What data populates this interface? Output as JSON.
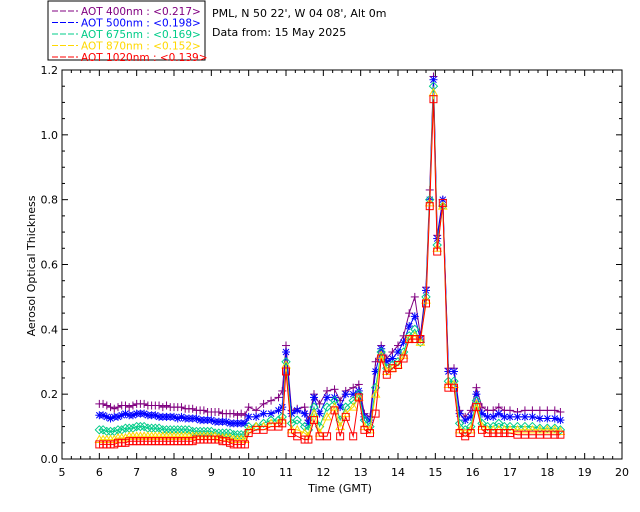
{
  "chart_data": {
    "type": "line",
    "site_info": "PML, N 50 22', W 04 08', Alt 0m",
    "date_info": "Data from: 15 May 2025",
    "xlabel": "Time (GMT)",
    "ylabel": "Aerosol Optical Thickness",
    "xlim": [
      5,
      20
    ],
    "ylim": [
      0.0,
      1.2
    ],
    "x_ticks": [
      "5",
      "6",
      "7",
      "8",
      "9",
      "10",
      "11",
      "12",
      "13",
      "14",
      "15",
      "16",
      "17",
      "18",
      "19",
      "20"
    ],
    "y_ticks": [
      "0.0",
      "0.2",
      "0.4",
      "0.6",
      "0.8",
      "1.0",
      "1.2"
    ],
    "legend_position": "top-left (above plot)",
    "x": [
      6.0,
      6.1,
      6.2,
      6.3,
      6.4,
      6.5,
      6.6,
      6.7,
      6.8,
      6.9,
      7.0,
      7.1,
      7.2,
      7.3,
      7.4,
      7.5,
      7.6,
      7.7,
      7.8,
      7.9,
      8.0,
      8.1,
      8.2,
      8.3,
      8.4,
      8.5,
      8.6,
      8.7,
      8.8,
      8.9,
      9.0,
      9.1,
      9.2,
      9.3,
      9.4,
      9.5,
      9.6,
      9.7,
      9.8,
      9.9,
      10.0,
      10.2,
      10.4,
      10.6,
      10.8,
      10.9,
      11.0,
      11.15,
      11.3,
      11.5,
      11.6,
      11.75,
      11.9,
      12.1,
      12.3,
      12.45,
      12.6,
      12.8,
      12.95,
      13.1,
      13.25,
      13.4,
      13.55,
      13.7,
      13.85,
      14.0,
      14.15,
      14.3,
      14.45,
      14.6,
      14.75,
      14.85,
      14.95,
      15.05,
      15.2,
      15.35,
      15.5,
      15.65,
      15.8,
      15.95,
      16.1,
      16.25,
      16.4,
      16.55,
      16.7,
      16.85,
      17.0,
      17.2,
      17.4,
      17.6,
      17.8,
      18.0,
      18.2,
      18.35
    ],
    "series": [
      {
        "name": "AOT  400nm : <0.217>",
        "color": "#800080",
        "marker": "plus",
        "values": [
          0.17,
          0.17,
          0.165,
          0.16,
          0.155,
          0.16,
          0.165,
          0.165,
          0.16,
          0.165,
          0.17,
          0.17,
          0.17,
          0.165,
          0.165,
          0.165,
          0.165,
          0.16,
          0.165,
          0.16,
          0.16,
          0.16,
          0.16,
          0.155,
          0.155,
          0.155,
          0.15,
          0.15,
          0.15,
          0.145,
          0.145,
          0.145,
          0.145,
          0.14,
          0.14,
          0.14,
          0.14,
          0.135,
          0.14,
          0.135,
          0.16,
          0.15,
          0.17,
          0.18,
          0.19,
          0.21,
          0.35,
          0.15,
          0.155,
          0.16,
          0.12,
          0.2,
          0.17,
          0.21,
          0.215,
          0.18,
          0.21,
          0.22,
          0.23,
          0.14,
          0.13,
          0.3,
          0.35,
          0.31,
          0.33,
          0.35,
          0.38,
          0.45,
          0.5,
          0.38,
          0.53,
          0.83,
          1.18,
          0.69,
          0.8,
          0.28,
          0.28,
          0.15,
          0.13,
          0.15,
          0.22,
          0.16,
          0.15,
          0.15,
          0.16,
          0.15,
          0.15,
          0.145,
          0.15,
          0.15,
          0.15,
          0.15,
          0.15,
          0.145
        ]
      },
      {
        "name": "AOT  500nm : <0.198>",
        "color": "#0000FF",
        "marker": "star",
        "values": [
          0.135,
          0.135,
          0.13,
          0.125,
          0.13,
          0.13,
          0.135,
          0.14,
          0.135,
          0.135,
          0.14,
          0.14,
          0.14,
          0.135,
          0.135,
          0.135,
          0.13,
          0.13,
          0.13,
          0.13,
          0.13,
          0.125,
          0.13,
          0.125,
          0.125,
          0.125,
          0.125,
          0.12,
          0.12,
          0.12,
          0.12,
          0.115,
          0.115,
          0.115,
          0.115,
          0.11,
          0.11,
          0.11,
          0.11,
          0.11,
          0.13,
          0.13,
          0.14,
          0.14,
          0.15,
          0.16,
          0.33,
          0.14,
          0.15,
          0.14,
          0.11,
          0.19,
          0.14,
          0.19,
          0.19,
          0.16,
          0.2,
          0.2,
          0.21,
          0.13,
          0.12,
          0.27,
          0.34,
          0.3,
          0.31,
          0.33,
          0.36,
          0.41,
          0.44,
          0.37,
          0.52,
          0.8,
          1.17,
          0.68,
          0.8,
          0.27,
          0.27,
          0.14,
          0.12,
          0.13,
          0.2,
          0.14,
          0.13,
          0.13,
          0.14,
          0.13,
          0.13,
          0.13,
          0.13,
          0.13,
          0.125,
          0.125,
          0.125,
          0.12
        ]
      },
      {
        "name": "AOT  675nm : <0.169>",
        "color": "#00CC88",
        "marker": "diamond",
        "values": [
          0.09,
          0.09,
          0.085,
          0.085,
          0.085,
          0.09,
          0.09,
          0.095,
          0.095,
          0.095,
          0.1,
          0.1,
          0.1,
          0.095,
          0.095,
          0.095,
          0.095,
          0.09,
          0.09,
          0.09,
          0.09,
          0.09,
          0.09,
          0.09,
          0.09,
          0.085,
          0.085,
          0.085,
          0.085,
          0.085,
          0.085,
          0.08,
          0.08,
          0.08,
          0.08,
          0.08,
          0.075,
          0.075,
          0.075,
          0.075,
          0.1,
          0.1,
          0.11,
          0.12,
          0.12,
          0.13,
          0.3,
          0.11,
          0.12,
          0.1,
          0.09,
          0.16,
          0.1,
          0.16,
          0.18,
          0.12,
          0.16,
          0.18,
          0.2,
          0.12,
          0.1,
          0.22,
          0.33,
          0.28,
          0.29,
          0.3,
          0.33,
          0.38,
          0.4,
          0.36,
          0.5,
          0.8,
          1.15,
          0.66,
          0.78,
          0.24,
          0.24,
          0.11,
          0.09,
          0.1,
          0.18,
          0.11,
          0.1,
          0.1,
          0.11,
          0.1,
          0.1,
          0.1,
          0.1,
          0.1,
          0.095,
          0.095,
          0.095,
          0.09
        ]
      },
      {
        "name": "AOT  870nm : <0.152>",
        "color": "#FFD800",
        "marker": "triangle",
        "values": [
          0.06,
          0.06,
          0.06,
          0.06,
          0.06,
          0.065,
          0.065,
          0.065,
          0.07,
          0.07,
          0.07,
          0.07,
          0.07,
          0.07,
          0.07,
          0.07,
          0.07,
          0.07,
          0.07,
          0.07,
          0.07,
          0.07,
          0.07,
          0.07,
          0.07,
          0.07,
          0.07,
          0.07,
          0.07,
          0.07,
          0.07,
          0.07,
          0.065,
          0.065,
          0.065,
          0.065,
          0.06,
          0.06,
          0.06,
          0.06,
          0.09,
          0.1,
          0.1,
          0.11,
          0.11,
          0.12,
          0.29,
          0.09,
          0.09,
          0.08,
          0.07,
          0.14,
          0.08,
          0.13,
          0.16,
          0.1,
          0.14,
          0.16,
          0.19,
          0.1,
          0.09,
          0.2,
          0.32,
          0.27,
          0.28,
          0.29,
          0.32,
          0.37,
          0.38,
          0.36,
          0.49,
          0.79,
          1.13,
          0.65,
          0.78,
          0.23,
          0.23,
          0.09,
          0.08,
          0.09,
          0.17,
          0.1,
          0.09,
          0.09,
          0.09,
          0.09,
          0.09,
          0.09,
          0.09,
          0.09,
          0.09,
          0.09,
          0.09,
          0.085
        ]
      },
      {
        "name": "AOT 1020nm : <0.139>",
        "color": "#FF0000",
        "marker": "square",
        "values": [
          0.045,
          0.045,
          0.045,
          0.045,
          0.045,
          0.05,
          0.05,
          0.05,
          0.055,
          0.055,
          0.055,
          0.055,
          0.055,
          0.055,
          0.055,
          0.055,
          0.055,
          0.055,
          0.055,
          0.055,
          0.055,
          0.055,
          0.055,
          0.055,
          0.055,
          0.055,
          0.06,
          0.06,
          0.06,
          0.06,
          0.06,
          0.06,
          0.06,
          0.055,
          0.055,
          0.05,
          0.045,
          0.045,
          0.045,
          0.045,
          0.08,
          0.09,
          0.09,
          0.1,
          0.1,
          0.11,
          0.27,
          0.08,
          0.07,
          0.06,
          0.06,
          0.12,
          0.07,
          0.07,
          0.15,
          0.07,
          0.13,
          0.07,
          0.19,
          0.09,
          0.08,
          0.14,
          0.31,
          0.26,
          0.28,
          0.29,
          0.31,
          0.37,
          0.37,
          0.37,
          0.48,
          0.78,
          1.11,
          0.64,
          0.79,
          0.22,
          0.22,
          0.08,
          0.07,
          0.08,
          0.16,
          0.09,
          0.08,
          0.08,
          0.08,
          0.08,
          0.08,
          0.075,
          0.075,
          0.075,
          0.075,
          0.075,
          0.075,
          0.075
        ]
      }
    ]
  }
}
